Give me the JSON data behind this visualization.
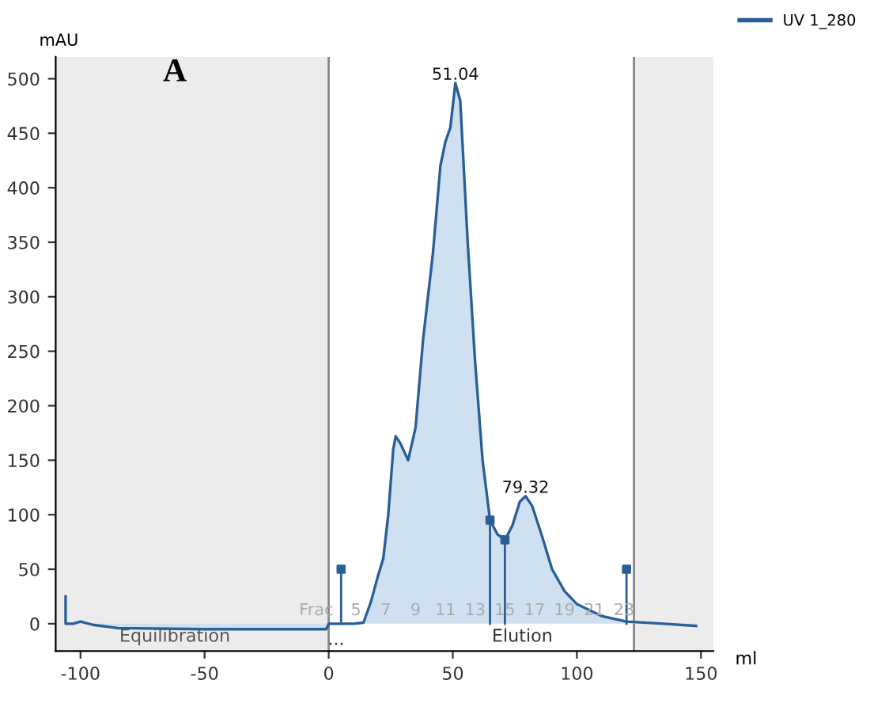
{
  "chart_data": {
    "type": "area",
    "ylabel": "mAU",
    "xlabel": "ml",
    "xlim": [
      -110,
      155
    ],
    "ylim": [
      -25,
      520
    ],
    "xticks": [
      -100,
      -50,
      0,
      50,
      100,
      150
    ],
    "yticks": [
      0,
      50,
      100,
      150,
      200,
      250,
      300,
      350,
      400,
      450,
      500
    ],
    "grid": false,
    "legend": "top right",
    "series": [
      {
        "name": "UV 1_280",
        "color": "#2a5f96",
        "x": [
          -106,
          -106,
          -103,
          -100,
          -95,
          -85,
          -50,
          -1,
          0,
          10,
          14,
          17,
          20,
          22,
          24,
          26,
          27,
          29,
          32,
          35,
          38,
          42,
          45,
          47,
          49,
          51.04,
          53,
          56,
          59,
          62,
          65,
          68,
          71,
          74,
          77,
          79.32,
          82,
          86,
          90,
          95,
          100,
          110,
          120,
          135,
          148
        ],
        "values": [
          25,
          0,
          0,
          2,
          -1,
          -4,
          -5,
          -5,
          0,
          0,
          1,
          20,
          45,
          60,
          100,
          160,
          172,
          165,
          150,
          180,
          260,
          340,
          420,
          442,
          455,
          496,
          480,
          350,
          240,
          150,
          95,
          82,
          77,
          90,
          112,
          117,
          108,
          80,
          50,
          30,
          18,
          7,
          2,
          0,
          -2
        ]
      },
      {
        "type": "lollipop",
        "color": "#2a5f96",
        "x": [
          5,
          65,
          71,
          120
        ],
        "values": [
          50,
          95,
          77,
          50
        ]
      }
    ],
    "bands": [
      {
        "axis": "x",
        "from": -110,
        "to": 0,
        "color": "#ececec"
      },
      {
        "axis": "x",
        "from": 123,
        "to": 155,
        "color": "#ececec"
      }
    ],
    "ref_lines": [
      {
        "axis": "x",
        "value": 0,
        "color": "#888888"
      },
      {
        "axis": "x",
        "value": 123,
        "color": "#888888"
      }
    ],
    "annotations": [
      "A",
      "Equilibration",
      "Elution",
      "...",
      "Frac",
      "5",
      "7",
      "9",
      "11",
      "13",
      "15",
      "17",
      "19",
      "21",
      "23",
      {
        "text": "51.04",
        "x": 51.04,
        "y": 496
      },
      {
        "text": "79.32",
        "x": 79.32,
        "y": 117
      }
    ]
  }
}
